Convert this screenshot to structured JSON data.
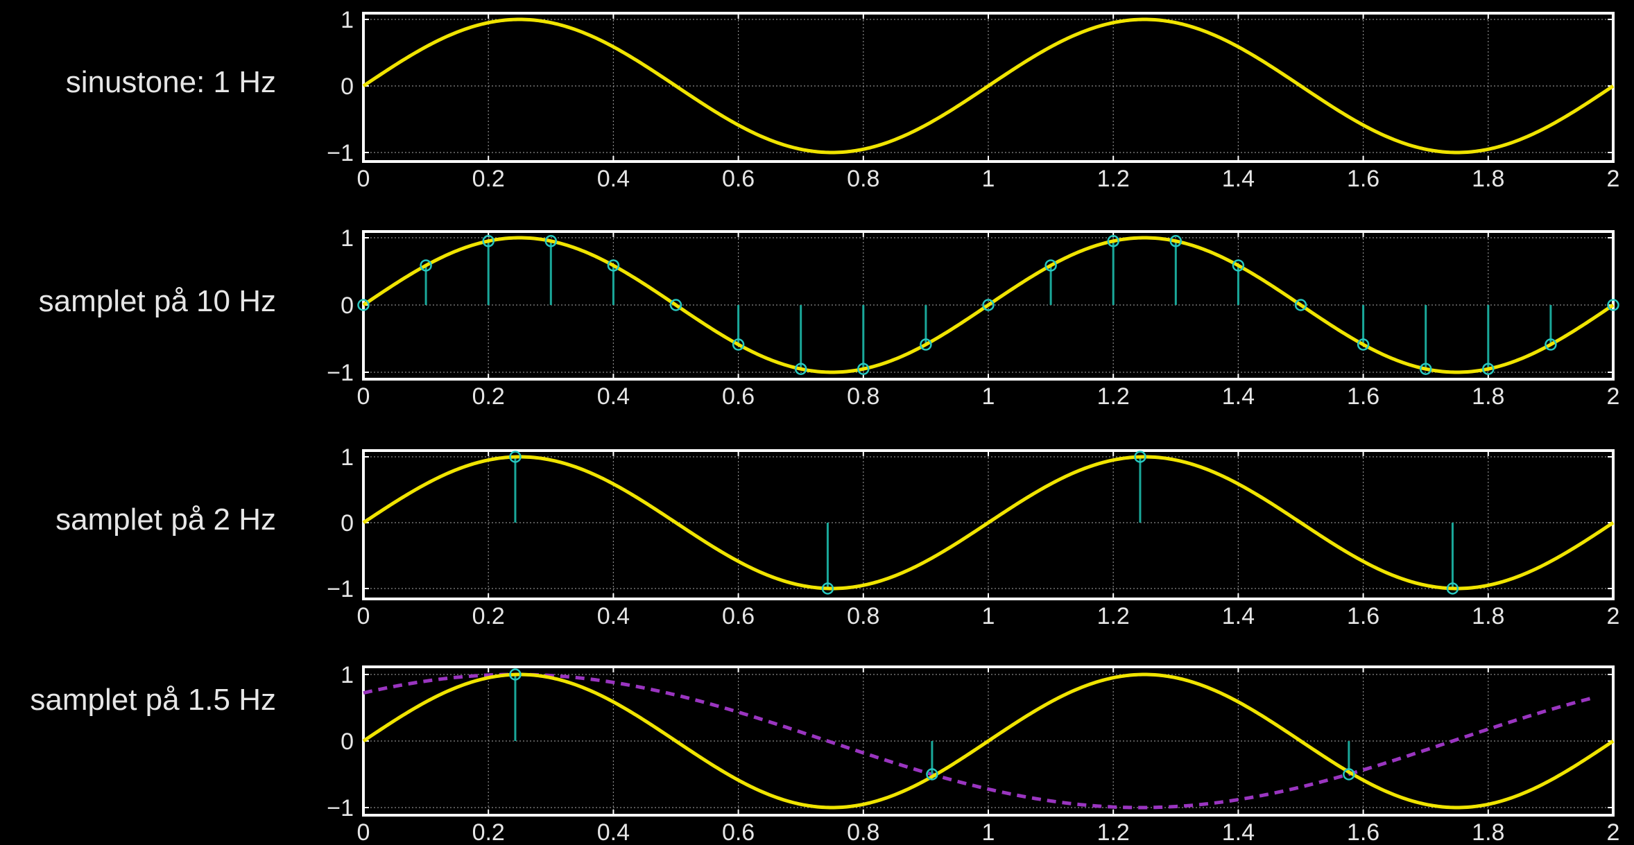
{
  "colors": {
    "background": "#000000",
    "frame": "#ffffff",
    "grid": "#8a8a8a",
    "signal": "#f0e400",
    "stem": "#1aa89a",
    "marker": "#28c8c0",
    "alias": "#9a35c0",
    "text": "#e6e6e6"
  },
  "chart_data": [
    {
      "type": "line",
      "label": "sinustone: 1 Hz",
      "signal_frequency": 1,
      "xlim": [
        0,
        2
      ],
      "ylim": [
        -1,
        1
      ],
      "grid": true,
      "xticks": [
        "0",
        "0.2",
        "0.4",
        "0.6",
        "0.8",
        "1",
        "1.2",
        "1.4",
        "1.6",
        "1.8",
        "2"
      ],
      "yticks": [
        "1",
        "0",
        "−1"
      ],
      "series": [
        {
          "kind": "continuous",
          "expr": "sin(2*pi*1*t)",
          "style": "solid",
          "color": "#f0e400"
        }
      ],
      "samples": []
    },
    {
      "type": "line",
      "label": "samplet på 10 Hz",
      "signal_frequency": 1,
      "sample_rate": 10,
      "xlim": [
        0,
        2
      ],
      "ylim": [
        -1,
        1
      ],
      "grid": true,
      "xticks": [
        "0",
        "0.2",
        "0.4",
        "0.6",
        "0.8",
        "1",
        "1.2",
        "1.4",
        "1.6",
        "1.8",
        "2"
      ],
      "yticks": [
        "1",
        "0",
        "−1"
      ],
      "series": [
        {
          "kind": "continuous",
          "expr": "sin(2*pi*1*t)",
          "style": "solid",
          "color": "#f0e400"
        }
      ],
      "samples": [
        {
          "t": 0.0,
          "y": 0.0
        },
        {
          "t": 0.1,
          "y": 0.588
        },
        {
          "t": 0.2,
          "y": 0.951
        },
        {
          "t": 0.3,
          "y": 0.951
        },
        {
          "t": 0.4,
          "y": 0.588
        },
        {
          "t": 0.5,
          "y": 0.0
        },
        {
          "t": 0.6,
          "y": -0.588
        },
        {
          "t": 0.7,
          "y": -0.951
        },
        {
          "t": 0.8,
          "y": -0.951
        },
        {
          "t": 0.9,
          "y": -0.588
        },
        {
          "t": 1.0,
          "y": 0.0
        },
        {
          "t": 1.1,
          "y": 0.588
        },
        {
          "t": 1.2,
          "y": 0.951
        },
        {
          "t": 1.3,
          "y": 0.951
        },
        {
          "t": 1.4,
          "y": 0.588
        },
        {
          "t": 1.5,
          "y": 0.0
        },
        {
          "t": 1.6,
          "y": -0.588
        },
        {
          "t": 1.7,
          "y": -0.951
        },
        {
          "t": 1.8,
          "y": -0.951
        },
        {
          "t": 1.9,
          "y": -0.588
        },
        {
          "t": 2.0,
          "y": 0.0
        }
      ]
    },
    {
      "type": "line",
      "label": "samplet på 2 Hz",
      "signal_frequency": 1,
      "sample_rate": 2,
      "xlim": [
        0,
        2
      ],
      "ylim": [
        -1,
        1
      ],
      "grid": true,
      "xticks": [
        "0",
        "0.2",
        "0.4",
        "0.6",
        "0.8",
        "1",
        "1.2",
        "1.4",
        "1.6",
        "1.8",
        "2"
      ],
      "yticks": [
        "1",
        "0",
        "−1"
      ],
      "series": [
        {
          "kind": "continuous",
          "expr": "sin(2*pi*1*t)",
          "style": "solid",
          "color": "#f0e400"
        }
      ],
      "samples": [
        {
          "t": 0.243,
          "y": 1.0
        },
        {
          "t": 0.743,
          "y": -1.0
        },
        {
          "t": 1.243,
          "y": 1.0
        },
        {
          "t": 1.743,
          "y": -1.0
        }
      ]
    },
    {
      "type": "line",
      "label": "samplet på 1.5 Hz",
      "signal_frequency": 1,
      "sample_rate": 1.5,
      "xlim": [
        0,
        2
      ],
      "ylim": [
        -1,
        1
      ],
      "grid": true,
      "xticks": [
        "0",
        "0.2",
        "0.4",
        "0.6",
        "0.8",
        "1",
        "1.2",
        "1.4",
        "1.6",
        "1.8",
        "2"
      ],
      "yticks": [
        "1",
        "0",
        "−1"
      ],
      "series": [
        {
          "kind": "continuous",
          "expr": "sin(2*pi*1*t)",
          "style": "solid",
          "color": "#f0e400"
        },
        {
          "kind": "alias",
          "expr": "cos(2*pi*0.5*(t-0.243))",
          "style": "dashed",
          "color": "#9a35c0",
          "x_end": 1.97
        }
      ],
      "samples": [
        {
          "t": 0.243,
          "y": 1.0
        },
        {
          "t": 0.91,
          "y": -0.5
        },
        {
          "t": 1.577,
          "y": -0.5
        }
      ]
    }
  ]
}
